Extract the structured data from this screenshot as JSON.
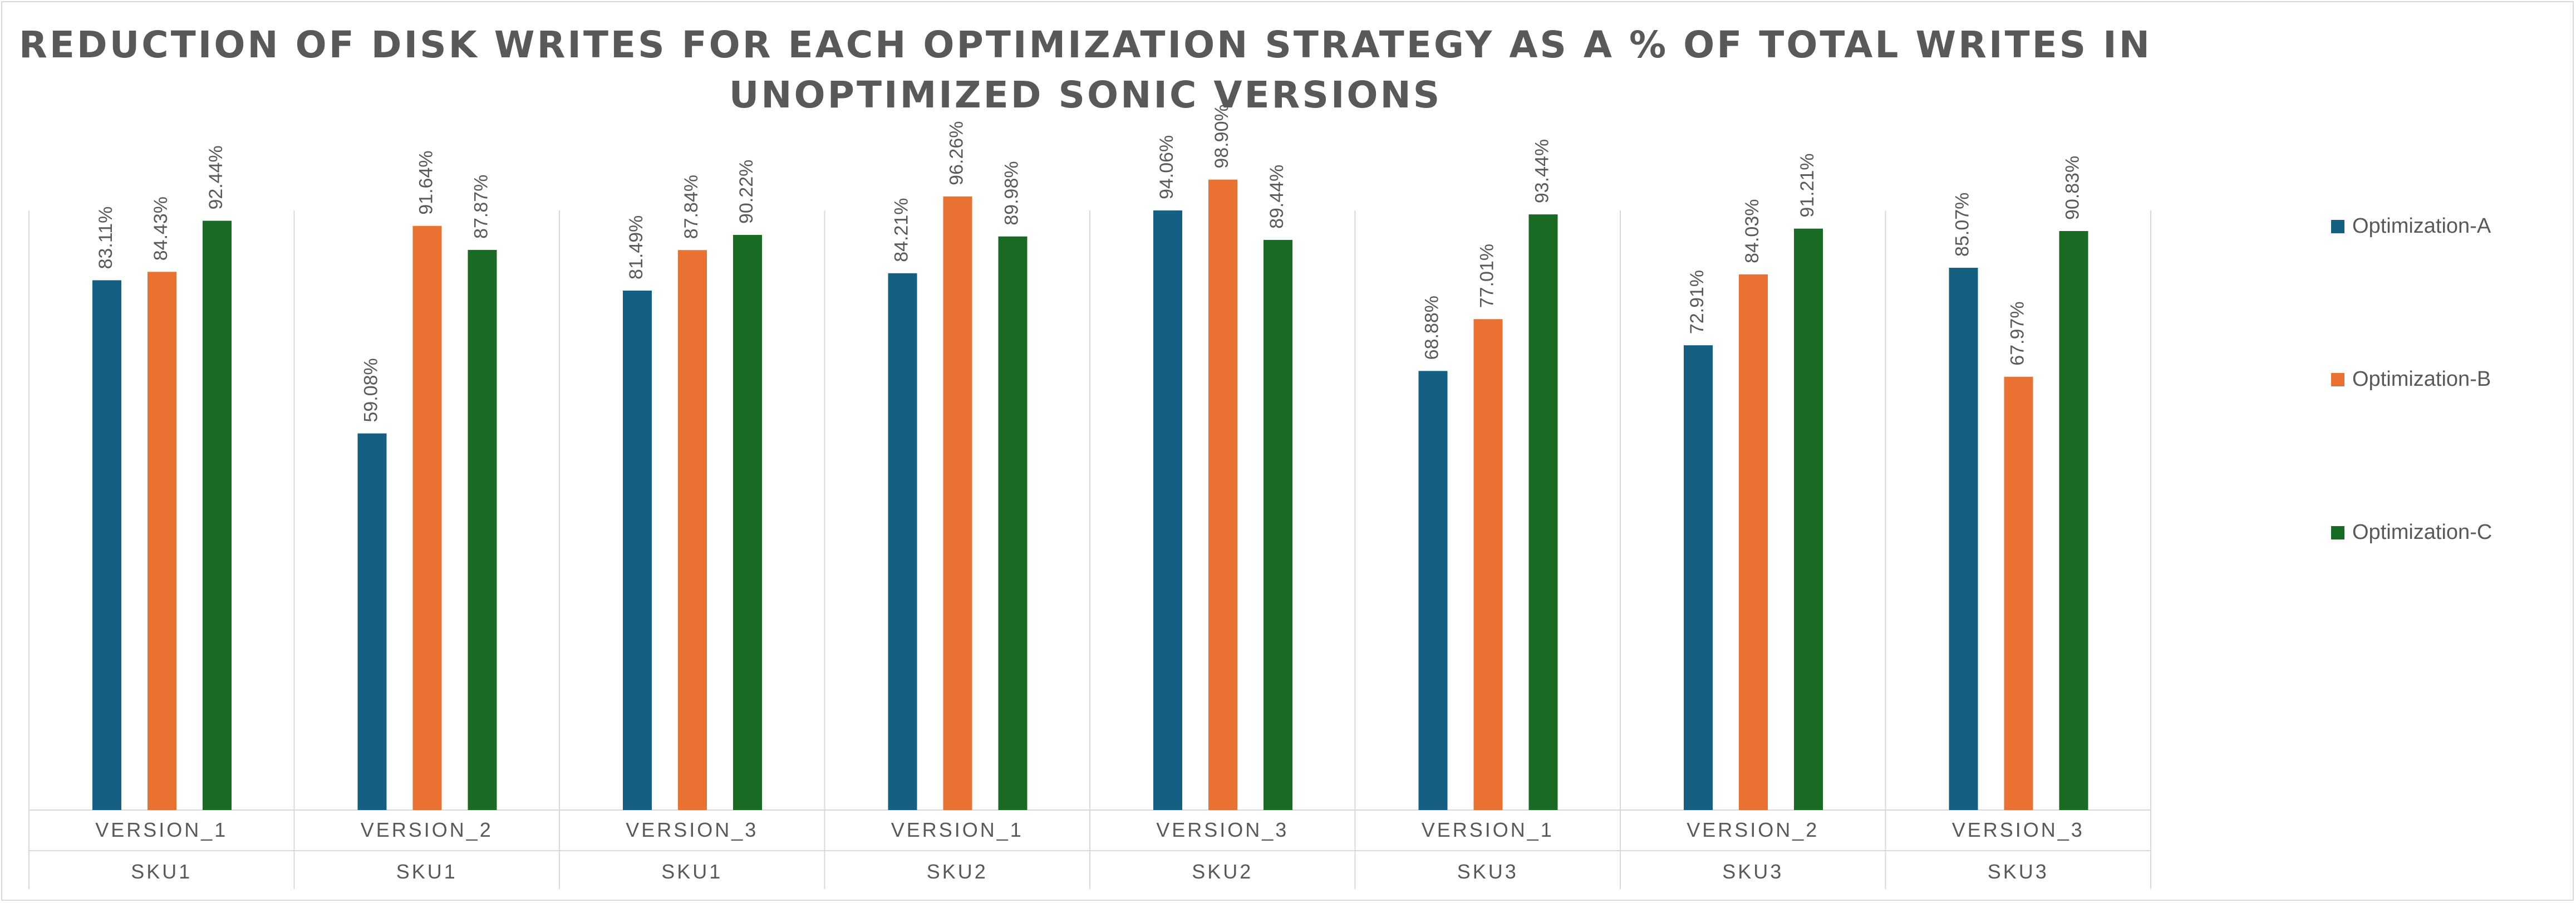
{
  "chart_data": {
    "type": "bar",
    "title_lines": [
      "REDUCTION OF DISK WRITES FOR EACH OPTIMIZATION STRATEGY AS A % OF TOTAL WRITES IN",
      "UNOPTIMIZED SONIC VERSIONS"
    ],
    "categories": [
      {
        "version": "VERSION_1",
        "sku": "SKU1"
      },
      {
        "version": "VERSION_2",
        "sku": "SKU1"
      },
      {
        "version": "VERSION_3",
        "sku": "SKU1"
      },
      {
        "version": "VERSION_1",
        "sku": "SKU2"
      },
      {
        "version": "VERSION_3",
        "sku": "SKU2"
      },
      {
        "version": "VERSION_1",
        "sku": "SKU3"
      },
      {
        "version": "VERSION_2",
        "sku": "SKU3"
      },
      {
        "version": "VERSION_3",
        "sku": "SKU3"
      }
    ],
    "series": [
      {
        "name": "Optimization-A",
        "color": "#156082",
        "values": [
          83.11,
          59.08,
          81.49,
          84.21,
          94.06,
          68.88,
          72.91,
          85.07
        ],
        "labels": [
          "83.11%",
          "59.08%",
          "81.49%",
          "84.21%",
          "94.06%",
          "68.88%",
          "72.91%",
          "85.07%"
        ]
      },
      {
        "name": "Optimization-B",
        "color": "#E97132",
        "values": [
          84.43,
          91.64,
          87.84,
          96.26,
          98.9,
          77.01,
          84.03,
          67.97
        ],
        "labels": [
          "84.43%",
          "91.64%",
          "87.84%",
          "96.26%",
          "98.90%",
          "77.01%",
          "84.03%",
          "67.97%"
        ]
      },
      {
        "name": "Optimization-C",
        "color": "#196B24",
        "values": [
          92.44,
          87.87,
          90.22,
          89.98,
          89.44,
          93.44,
          91.21,
          90.83
        ],
        "labels": [
          "92.44%",
          "87.87%",
          "90.22%",
          "89.98%",
          "89.44%",
          "93.44%",
          "91.21%",
          "90.83%"
        ]
      }
    ],
    "ylim": [
      0,
      100
    ],
    "grid": false,
    "legend_position": "right",
    "data_labels": true
  }
}
